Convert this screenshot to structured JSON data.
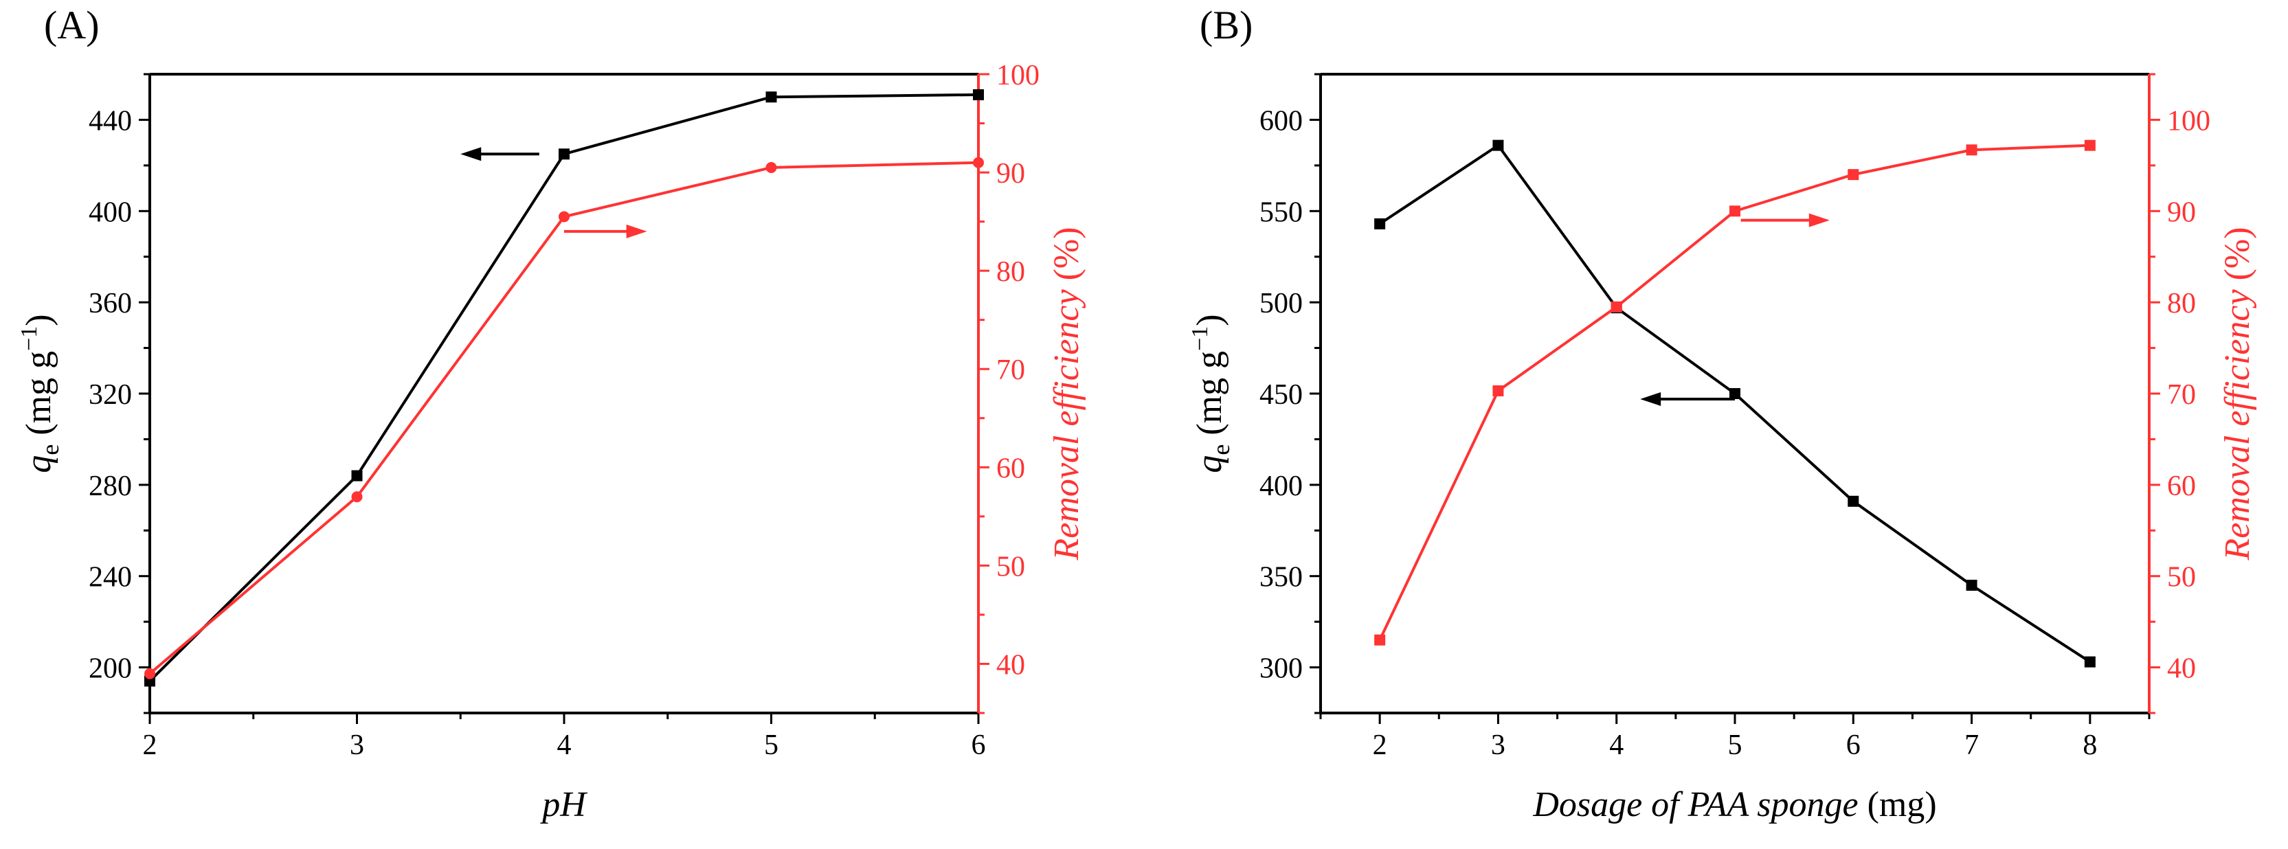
{
  "colors": {
    "left": "#000000",
    "right": "#ff3333"
  },
  "chart_data": [
    {
      "type": "line",
      "panel_label": "(A)",
      "xlabel": "pH",
      "ylabel_left": {
        "symbol": "q",
        "sub": "e",
        "unit_open": " (mg g",
        "unit_exp": "−1",
        "unit_close": ")"
      },
      "ylabel_right": {
        "main": "Removal efficiency",
        "unit": " (%)"
      },
      "x": [
        2,
        3,
        4,
        5,
        6
      ],
      "xlim": [
        2,
        6
      ],
      "xticks": [
        2,
        3,
        4,
        5,
        6
      ],
      "ylim_left": [
        180,
        460
      ],
      "yticks_left": [
        200,
        240,
        280,
        320,
        360,
        400,
        440
      ],
      "ylim_right": [
        35,
        100
      ],
      "yticks_right": [
        40,
        50,
        60,
        70,
        80,
        90,
        100
      ],
      "series": [
        {
          "name": "q_e",
          "axis": "left",
          "marker": "square",
          "values": [
            194,
            284,
            425,
            450,
            451
          ]
        },
        {
          "name": "Removal efficiency",
          "axis": "right",
          "marker": "circle",
          "values": [
            39,
            57,
            85.5,
            90.5,
            91
          ]
        }
      ],
      "annotations": [
        {
          "type": "arrow",
          "direction": "left",
          "axis": "left",
          "x_from": 3.88,
          "x_to": 3.5,
          "y": 425
        },
        {
          "type": "arrow",
          "direction": "right",
          "axis": "right",
          "x_from": 4.0,
          "x_to": 4.4,
          "y": 84
        }
      ]
    },
    {
      "type": "line",
      "panel_label": "(B)",
      "xlabel": "Dosage of PAA sponge",
      "xlabel_unit": " (mg)",
      "ylabel_left": {
        "symbol": "q",
        "sub": "e",
        "unit_open": " (mg g",
        "unit_exp": "−1",
        "unit_close": ")"
      },
      "ylabel_right": {
        "main": "Removal efficiency",
        "unit": " (%)"
      },
      "x": [
        2,
        3,
        4,
        5,
        6,
        7,
        8
      ],
      "xlim": [
        1.5,
        8.5
      ],
      "xticks": [
        2,
        3,
        4,
        5,
        6,
        7,
        8
      ],
      "ylim_left": [
        275,
        625
      ],
      "yticks_left": [
        300,
        350,
        400,
        450,
        500,
        550,
        600
      ],
      "ylim_right": [
        35,
        105
      ],
      "yticks_right": [
        40,
        50,
        60,
        70,
        80,
        90,
        100
      ],
      "series": [
        {
          "name": "q_e",
          "axis": "left",
          "marker": "square",
          "values": [
            543,
            586,
            497,
            450,
            391,
            345,
            303
          ]
        },
        {
          "name": "Removal efficiency",
          "axis": "right",
          "marker": "square",
          "values": [
            43,
            70.3,
            79.5,
            90,
            94,
            96.7,
            97.2
          ]
        }
      ],
      "annotations": [
        {
          "type": "arrow",
          "direction": "left",
          "axis": "left",
          "x_from": 5.0,
          "x_to": 4.2,
          "y": 447
        },
        {
          "type": "arrow",
          "direction": "right",
          "axis": "right",
          "x_from": 5.05,
          "x_to": 5.8,
          "y": 89
        }
      ]
    }
  ]
}
